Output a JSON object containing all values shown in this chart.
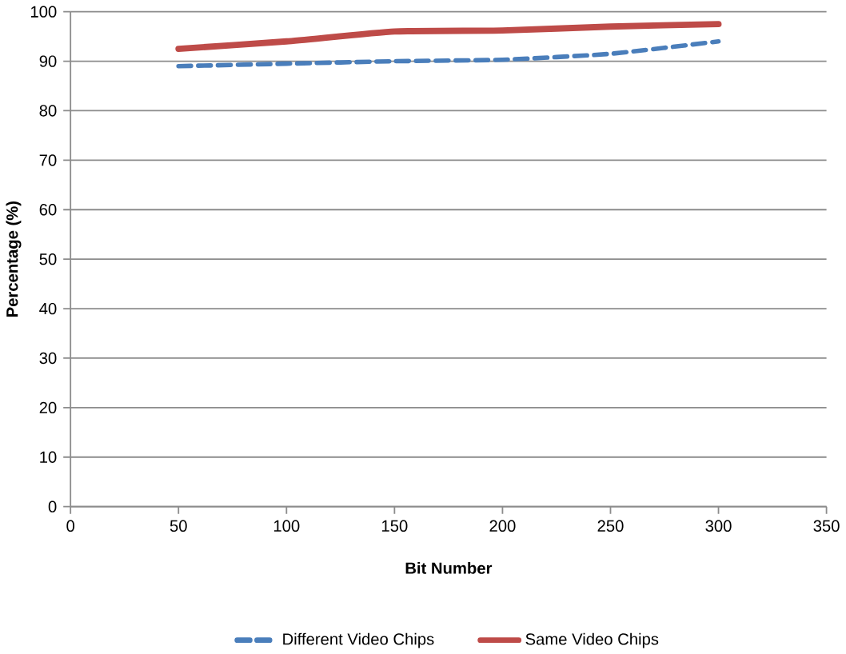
{
  "chart_data": {
    "type": "line",
    "xlabel": "Bit Number",
    "ylabel": "Percentage (%)",
    "xlim": [
      0,
      350
    ],
    "xticks": [
      0,
      50,
      100,
      150,
      200,
      250,
      300,
      350
    ],
    "ylim": [
      0,
      100
    ],
    "yticks": [
      0,
      10,
      20,
      30,
      40,
      50,
      60,
      70,
      80,
      90,
      100
    ],
    "grid": "y",
    "legend": "bottom",
    "marker": "none",
    "x": [
      50,
      100,
      150,
      200,
      250,
      300
    ],
    "series": [
      {
        "name": "Different Video Chips",
        "color": "#4a7ebb",
        "line_style": "dashed",
        "values": [
          89,
          89.5,
          90,
          90.3,
          91.5,
          94
        ]
      },
      {
        "name": "Same Video Chips",
        "color": "#be4b48",
        "line_style": "solid",
        "values": [
          92.5,
          94,
          96,
          96.2,
          97,
          97.5
        ]
      }
    ]
  }
}
